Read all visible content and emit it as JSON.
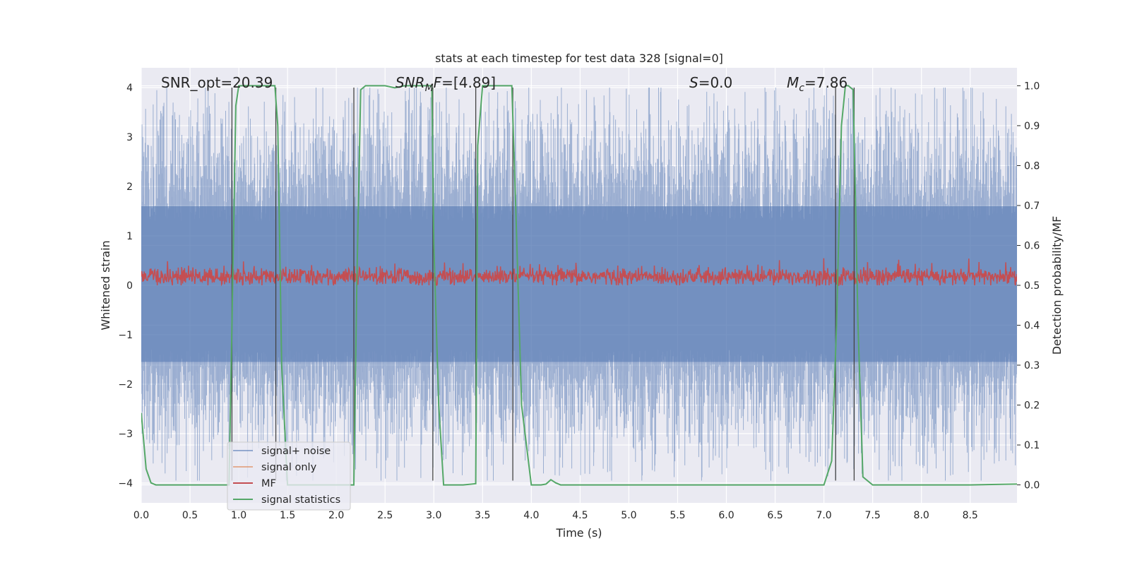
{
  "chart_data": {
    "type": "line",
    "title": "stats at each timestep for test data 328 [signal=0]",
    "xlabel": "Time (s)",
    "ylabel": "Whitened strain",
    "ylabel_right": "Detection probability/MF",
    "xlim": [
      0.0,
      8.98
    ],
    "ylim": [
      -4.4,
      4.4
    ],
    "ylim_right": [
      -0.045,
      1.045
    ],
    "x_ticks": [
      "0.0",
      "0.5",
      "1.0",
      "1.5",
      "2.0",
      "2.5",
      "3.0",
      "3.5",
      "4.0",
      "4.5",
      "5.0",
      "5.5",
      "6.0",
      "6.5",
      "7.0",
      "7.5",
      "8.0",
      "8.5"
    ],
    "y_ticks": [
      "4",
      "3",
      "2",
      "1",
      "0",
      "−1",
      "−2",
      "−3",
      "−4"
    ],
    "y_ticks_right": [
      "1.0",
      "0.9",
      "0.8",
      "0.7",
      "0.6",
      "0.5",
      "0.4",
      "0.3",
      "0.2",
      "0.1",
      "0.0"
    ],
    "grid": true,
    "legend_position": "lower-left",
    "annotations": {
      "snr_opt": "SNR_opt=20.39",
      "snr_mf_name": "SNR",
      "snr_mf_sub": "M",
      "snr_mf_rest": "F=[4.89]",
      "s_name": "S",
      "s_rest": "=0.0",
      "mc_name": "M",
      "mc_sub": "c",
      "mc_rest": "=7.86"
    },
    "series": [
      {
        "name": "signal+ noise",
        "color": "#4c72b0",
        "description_values": {
          "approx_envelope": [
            -2.5,
            2.5
          ],
          "peak_range": [
            -3.9,
            4.0
          ]
        }
      },
      {
        "name": "signal only",
        "color": "#dd8452",
        "values": []
      },
      {
        "name": "MF",
        "color": "#c44e52",
        "approx_range": [
          0.5,
          0.58
        ]
      },
      {
        "name": "signal statistics",
        "color": "#55a868",
        "x": [
          0.0,
          0.05,
          0.1,
          0.15,
          0.2,
          0.5,
          0.9,
          0.93,
          0.97,
          1.0,
          1.1,
          1.3,
          1.37,
          1.4,
          1.44,
          1.5,
          2.0,
          2.18,
          2.21,
          2.25,
          2.3,
          2.4,
          2.5,
          2.6,
          2.7,
          2.8,
          2.9,
          2.98,
          3.0,
          3.05,
          3.1,
          3.15,
          3.3,
          3.43,
          3.45,
          3.5,
          3.6,
          3.7,
          3.8,
          3.84,
          3.9,
          4.0,
          4.1,
          4.15,
          4.2,
          4.25,
          4.3,
          4.5,
          5.0,
          5.5,
          6.0,
          6.5,
          7.0,
          7.08,
          7.13,
          7.18,
          7.22,
          7.25,
          7.3,
          7.35,
          7.4,
          7.5,
          8.0,
          8.5,
          8.98
        ],
        "values": [
          0.18,
          0.04,
          0.005,
          0.0,
          0.0,
          0.0,
          0.0,
          0.4,
          0.95,
          1.0,
          1.0,
          1.0,
          1.0,
          0.9,
          0.3,
          0.0,
          0.0,
          0.0,
          0.5,
          0.99,
          1.0,
          1.0,
          1.0,
          0.995,
          1.0,
          1.0,
          1.0,
          1.0,
          0.6,
          0.2,
          0.0,
          0.0,
          0.0,
          0.003,
          0.85,
          1.0,
          1.0,
          1.0,
          1.0,
          0.7,
          0.2,
          0.0,
          0.0,
          0.002,
          0.013,
          0.005,
          0.0,
          0.0,
          0.0,
          0.0,
          0.0,
          0.0,
          0.0,
          0.06,
          0.4,
          0.9,
          1.0,
          1.0,
          0.99,
          0.4,
          0.02,
          0.0,
          0.0,
          0.0,
          0.002
        ]
      }
    ],
    "vertical_markers_x": [
      0.93,
      1.38,
      2.18,
      2.99,
      3.43,
      3.81,
      7.12,
      7.31
    ]
  }
}
